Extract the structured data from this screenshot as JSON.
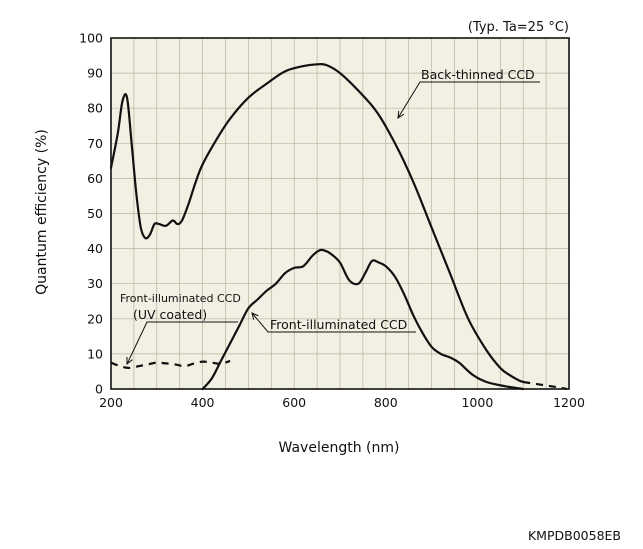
{
  "chart_data": {
    "type": "line",
    "note": "(Typ. Ta=25 °C)",
    "xlabel": "Wavelength (nm)",
    "ylabel": "Quantum efficiency (%)",
    "xlim": [
      200,
      1200
    ],
    "ylim": [
      0,
      100
    ],
    "xticks": [
      200,
      400,
      600,
      800,
      1000,
      1200
    ],
    "yticks": [
      0,
      10,
      20,
      30,
      40,
      50,
      60,
      70,
      80,
      90,
      100
    ],
    "grid": true,
    "background": "#f2efe3",
    "series": [
      {
        "name": "Back-thinned CCD",
        "style": "solid",
        "x": [
          200,
          215,
          225,
          235,
          245,
          255,
          265,
          275,
          285,
          295,
          305,
          320,
          335,
          345,
          355,
          370,
          385,
          400,
          430,
          460,
          500,
          540,
          580,
          620,
          650,
          670,
          700,
          740,
          780,
          820,
          860,
          900,
          940,
          980,
          1020,
          1050,
          1070,
          1090,
          1100
        ],
        "y": [
          63,
          73,
          82,
          83,
          70,
          56,
          46,
          43,
          44,
          47,
          47,
          46.5,
          48,
          47,
          48,
          53,
          59,
          64,
          71,
          77,
          83,
          87,
          90.5,
          92,
          92.5,
          92.3,
          90,
          85,
          79,
          70,
          59,
          46,
          33,
          20,
          11,
          6,
          4,
          2.5,
          2
        ]
      },
      {
        "name": "Back-thinned CCD",
        "style": "dashed",
        "x": [
          1100,
          1120,
          1140,
          1160,
          1180,
          1195
        ],
        "y": [
          2,
          1.6,
          1.2,
          0.8,
          0.4,
          0
        ]
      },
      {
        "name": "Front-illuminated CCD",
        "style": "solid",
        "x": [
          400,
          420,
          440,
          460,
          480,
          500,
          520,
          540,
          560,
          580,
          600,
          620,
          640,
          655,
          665,
          680,
          700,
          720,
          740,
          755,
          770,
          785,
          800,
          820,
          840,
          860,
          880,
          900,
          920,
          940,
          960,
          990,
          1020,
          1060,
          1100
        ],
        "y": [
          0,
          3,
          8,
          13,
          18,
          23,
          25.5,
          28,
          30,
          33,
          34.5,
          35,
          38,
          39.5,
          39.5,
          38.5,
          36,
          31,
          30,
          33,
          36.5,
          36,
          35,
          32,
          27,
          21,
          16,
          12,
          10,
          9,
          7.5,
          4,
          2,
          0.8,
          0
        ]
      },
      {
        "name": "Front-illuminated CCD (UV coated)",
        "style": "dashed",
        "x": [
          200,
          220,
          240,
          260,
          280,
          300,
          320,
          340,
          360,
          380,
          400,
          420,
          440,
          460
        ],
        "y": [
          7.5,
          6.5,
          6,
          6.5,
          7,
          7.5,
          7.3,
          7,
          6.5,
          7.2,
          7.8,
          7.5,
          7.2,
          8
        ]
      }
    ],
    "labels": [
      {
        "text": "Back-thinned CCD",
        "class": "lbl"
      },
      {
        "text": "Front-illuminated CCD",
        "class": "lbl"
      },
      {
        "text": "Front-illuminated CCD",
        "class": "lbl-small"
      },
      {
        "text": "(UV coated)",
        "class": "lbl"
      }
    ]
  },
  "footer_code": "KMPDB0058EB"
}
